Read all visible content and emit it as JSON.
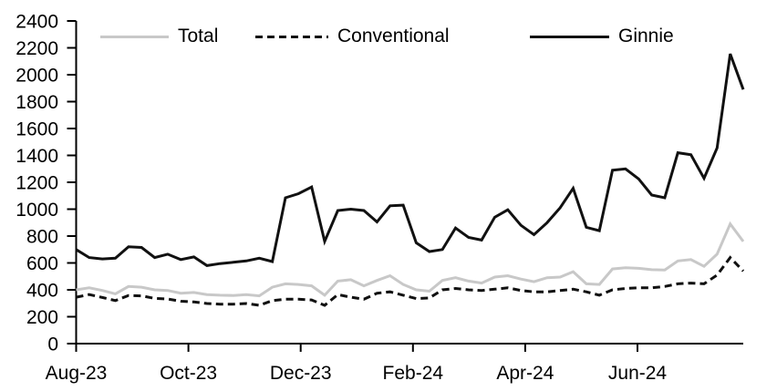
{
  "chart_data": {
    "type": "line",
    "title": "",
    "xlabel": "",
    "ylabel": "",
    "ylim": [
      0,
      2400
    ],
    "y_tick_step": 200,
    "y_tick_labels": [
      "0",
      "200",
      "400",
      "600",
      "800",
      "1000",
      "1200",
      "1400",
      "1600",
      "1800",
      "2000",
      "2200",
      "2400"
    ],
    "x_tick_labels": [
      "Aug-23",
      "Oct-23",
      "Dec-23",
      "Feb-24",
      "Apr-24",
      "Jun-24"
    ],
    "grid": "off",
    "legend_position": "top",
    "series": [
      {
        "name": "Total",
        "style": "solid",
        "color": "#c8c8c8",
        "values": [
          400,
          415,
          395,
          370,
          425,
          420,
          400,
          395,
          375,
          380,
          365,
          360,
          358,
          365,
          355,
          420,
          445,
          440,
          430,
          360,
          465,
          475,
          430,
          470,
          505,
          440,
          400,
          390,
          470,
          490,
          465,
          450,
          495,
          505,
          480,
          460,
          490,
          495,
          535,
          445,
          440,
          555,
          565,
          560,
          550,
          548,
          615,
          625,
          575,
          665,
          890,
          760
        ]
      },
      {
        "name": "Conventional",
        "style": "dashed",
        "color": "#111111",
        "values": [
          345,
          365,
          343,
          320,
          358,
          355,
          336,
          332,
          315,
          310,
          298,
          293,
          293,
          298,
          285,
          320,
          330,
          330,
          325,
          285,
          365,
          345,
          330,
          375,
          385,
          360,
          335,
          340,
          400,
          410,
          400,
          395,
          405,
          415,
          395,
          385,
          385,
          395,
          405,
          385,
          360,
          400,
          410,
          415,
          415,
          425,
          445,
          450,
          445,
          510,
          640,
          540
        ]
      },
      {
        "name": "Ginnie",
        "style": "solid",
        "color": "#111111",
        "values": [
          700,
          640,
          630,
          635,
          720,
          715,
          640,
          665,
          625,
          645,
          580,
          595,
          605,
          615,
          635,
          610,
          1085,
          1115,
          1165,
          760,
          990,
          1000,
          990,
          905,
          1025,
          1030,
          750,
          685,
          700,
          860,
          790,
          770,
          940,
          995,
          880,
          810,
          900,
          1010,
          1155,
          865,
          840,
          1290,
          1300,
          1225,
          1105,
          1085,
          1420,
          1405,
          1230,
          1455,
          2155,
          1890
        ]
      }
    ]
  }
}
